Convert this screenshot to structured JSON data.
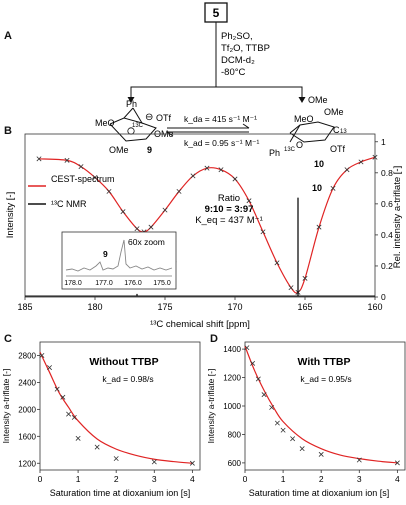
{
  "panel_letters": {
    "a": "A",
    "b": "B",
    "c": "C",
    "d": "D"
  },
  "scheme": {
    "compound": "5",
    "conditions": [
      "Ph₂SO,",
      "Tf₂O, TTBP",
      "DCM-d₂",
      "-80°C"
    ],
    "left_structure": {
      "substituents": [
        "Ph",
        "MeO",
        "OTf",
        "OMe",
        "OMe"
      ],
      "charge": "⊖",
      "isotope": "13C",
      "label": "9"
    },
    "right_structure": {
      "substituents": [
        "OMe",
        "OMe",
        "MeO",
        "O",
        "Ph",
        "13C",
        "C",
        "13",
        "OTf"
      ],
      "label": "10"
    },
    "k_da": "k_da = 415 s⁻¹ M⁻¹",
    "k_ad": "k_ad = 0.95 s⁻¹ M⁻¹"
  },
  "panel_b": {
    "legend": [
      "CEST-spectrum",
      "¹³C NMR"
    ],
    "ratio_title": "Ratio",
    "ratio_value": "9:10 = 3:97",
    "keq": "K_eq = 437 M⁻¹",
    "inset_label": "60x zoom",
    "inset_ticks": [
      "178.0",
      "177.0",
      "176.0",
      "175.0"
    ],
    "peak_label_9": "9",
    "peak_label_10": "10"
  },
  "chart_data": [
    {
      "type": "line",
      "xlabel": "¹³C chemical shift [ppm]",
      "ylabel": "Intensity [-]",
      "y2label": "Rel. intensity a-triflate [-]",
      "xlim": [
        185,
        160
      ],
      "ylim": [
        0,
        1.05
      ],
      "x_ticks": [
        185,
        180,
        175,
        170,
        165,
        160
      ],
      "y_ticks": [
        0,
        0.2,
        0.4,
        0.6,
        0.8,
        1
      ],
      "series": [
        {
          "name": "CEST-spectrum",
          "x": [
            184,
            182,
            181,
            180,
            179,
            178,
            177,
            176.5,
            176,
            175,
            174,
            173,
            172,
            171,
            170,
            169,
            168,
            167,
            166,
            165.5,
            165,
            164,
            163,
            162,
            161,
            160
          ],
          "y": [
            0.89,
            0.88,
            0.84,
            0.77,
            0.68,
            0.55,
            0.44,
            0.42,
            0.45,
            0.56,
            0.68,
            0.78,
            0.83,
            0.82,
            0.76,
            0.62,
            0.42,
            0.22,
            0.06,
            0.03,
            0.12,
            0.45,
            0.7,
            0.82,
            0.87,
            0.9
          ]
        },
        {
          "name": "¹³C NMR",
          "x": [
            177,
            165.5
          ],
          "y": [
            0.02,
            0.64
          ]
        }
      ]
    },
    {
      "type": "scatter",
      "title": "Without TTBP",
      "annotation": "k_ad = 0.98/s",
      "xlabel": "Saturation time at dioxanium ion [s]",
      "ylabel": "Intensity a-triflate [-]",
      "xlim": [
        0,
        4.2
      ],
      "ylim": [
        1100,
        3000
      ],
      "x_ticks": [
        0,
        1,
        2,
        3,
        4
      ],
      "y_ticks": [
        1200,
        1600,
        2000,
        2400,
        2800
      ],
      "series": [
        {
          "name": "data",
          "x": [
            0.05,
            0.25,
            0.45,
            0.6,
            0.75,
            0.9,
            1.0,
            1.5,
            2.0,
            3.0,
            4.0
          ],
          "y": [
            2800,
            2620,
            2300,
            2180,
            1930,
            1880,
            1570,
            1440,
            1270,
            1220,
            1200
          ]
        },
        {
          "name": "fit",
          "x": [
            0,
            0.25,
            0.5,
            0.75,
            1.0,
            1.5,
            2.0,
            2.5,
            3.0,
            3.5,
            4.0
          ],
          "y": [
            2850,
            2550,
            2250,
            2030,
            1830,
            1560,
            1410,
            1320,
            1260,
            1225,
            1200
          ]
        }
      ]
    },
    {
      "type": "scatter",
      "title": "With TTBP",
      "annotation": "k_ad = 0.95/s",
      "xlabel": "Saturation time at dioxanium ion [s]",
      "ylabel": "Intensity a-triflate [-]",
      "xlim": [
        0,
        4.2
      ],
      "ylim": [
        550,
        1450
      ],
      "x_ticks": [
        0,
        1,
        2,
        3,
        4
      ],
      "y_ticks": [
        600,
        800,
        1000,
        1200,
        1400
      ],
      "series": [
        {
          "name": "data",
          "x": [
            0.05,
            0.2,
            0.35,
            0.5,
            0.7,
            0.85,
            1.0,
            1.25,
            1.5,
            2.0,
            3.0,
            4.0
          ],
          "y": [
            1410,
            1300,
            1190,
            1080,
            990,
            880,
            830,
            770,
            700,
            660,
            620,
            600
          ]
        },
        {
          "name": "fit",
          "x": [
            0,
            0.25,
            0.5,
            0.75,
            1.0,
            1.5,
            2.0,
            2.5,
            3.0,
            3.5,
            4.0
          ],
          "y": [
            1420,
            1250,
            1110,
            990,
            890,
            770,
            700,
            655,
            630,
            612,
            600
          ]
        }
      ]
    }
  ]
}
